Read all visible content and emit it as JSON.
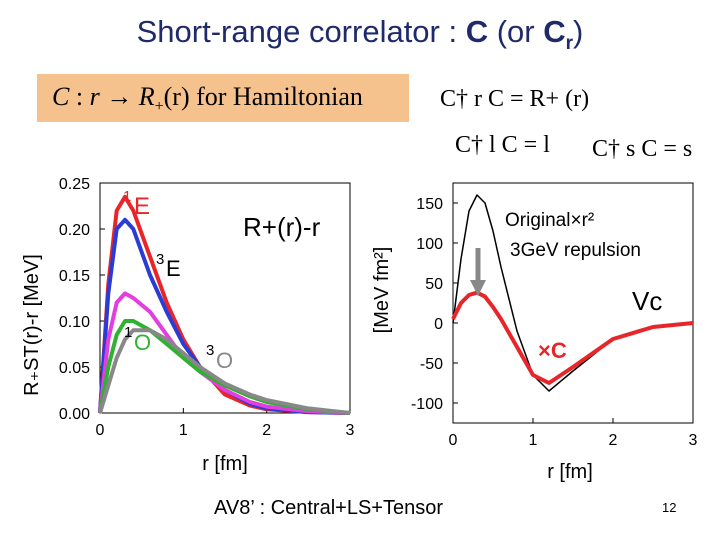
{
  "title": {
    "main": "Short-range correlator : ",
    "c": "C",
    "open": " (or ",
    "cr": "C",
    "r": "r",
    "close": ")"
  },
  "hamiltonian": {
    "lhs": "C",
    "colon": " : ",
    "r": "r",
    "arrow": "→",
    "R": "R",
    "plus": "+",
    "arg": "(r)",
    "tail": " for Hamiltonian"
  },
  "relations": {
    "rel1": "C† r  C = R+ (r)",
    "rel2": "C† l C = l",
    "rel3": "C† s C = s"
  },
  "footer": "AV8’ : Central+LS+Tensor",
  "page_number": "12",
  "colors": {
    "title": "#1f2a6b",
    "box": "#f5c28e",
    "red": "#e8262a",
    "blue": "#2a3cd6",
    "green": "#2fb22f",
    "magenta": "#e23ee0",
    "gray": "#888888"
  },
  "chart_data": [
    {
      "type": "line",
      "ylabel": "R₊ST(r)-r [MeV]",
      "xlabel": "r [fm]",
      "xlim": [
        0,
        3
      ],
      "ylim": [
        0,
        0.25
      ],
      "xticks": [
        "0",
        "1",
        "2",
        "3"
      ],
      "yticks": [
        "0.00",
        "0.05",
        "0.10",
        "0.15",
        "0.20",
        "0.25"
      ],
      "annotation": "R+(r)-r",
      "series": [
        {
          "name": "1E",
          "color": "#e8262a",
          "x": [
            0,
            0.1,
            0.2,
            0.3,
            0.4,
            0.6,
            0.8,
            1.0,
            1.2,
            1.5,
            1.8,
            2.0,
            2.5,
            3.0
          ],
          "y": [
            0,
            0.14,
            0.22,
            0.235,
            0.22,
            0.17,
            0.12,
            0.08,
            0.05,
            0.02,
            0.008,
            0.004,
            0.001,
            0
          ]
        },
        {
          "name": "",
          "color": "#2a3cd6",
          "x": [
            0,
            0.1,
            0.2,
            0.3,
            0.4,
            0.6,
            0.8,
            1.0,
            1.2,
            1.5,
            1.8,
            2.0,
            2.5,
            3.0
          ],
          "y": [
            0,
            0.13,
            0.2,
            0.21,
            0.2,
            0.15,
            0.11,
            0.075,
            0.05,
            0.025,
            0.01,
            0.005,
            0.001,
            0
          ]
        },
        {
          "name": "3E",
          "color": "#e23ee0",
          "x": [
            0,
            0.1,
            0.2,
            0.3,
            0.4,
            0.6,
            0.8,
            1.0,
            1.2,
            1.5,
            1.8,
            2.0,
            2.5,
            3.0
          ],
          "y": [
            0,
            0.08,
            0.12,
            0.13,
            0.125,
            0.11,
            0.085,
            0.06,
            0.045,
            0.025,
            0.012,
            0.007,
            0.002,
            0
          ]
        },
        {
          "name": "1O",
          "color": "#2fb22f",
          "x": [
            0,
            0.1,
            0.2,
            0.3,
            0.4,
            0.6,
            0.8,
            1.0,
            1.2,
            1.5,
            1.8,
            2.0,
            2.5,
            3.0
          ],
          "y": [
            0,
            0.05,
            0.085,
            0.1,
            0.1,
            0.09,
            0.075,
            0.06,
            0.045,
            0.03,
            0.018,
            0.012,
            0.004,
            0
          ]
        },
        {
          "name": "3O",
          "color": "#888888",
          "x": [
            0,
            0.1,
            0.2,
            0.3,
            0.4,
            0.6,
            0.8,
            1.0,
            1.2,
            1.5,
            1.8,
            2.0,
            2.5,
            3.0
          ],
          "y": [
            0,
            0.03,
            0.06,
            0.08,
            0.09,
            0.09,
            0.08,
            0.065,
            0.05,
            0.032,
            0.02,
            0.014,
            0.005,
            0
          ]
        }
      ],
      "labels": {
        "e1": "E",
        "e1sup": "1",
        "e3": "E",
        "e3sup": "3",
        "o1": "O",
        "o1sup": "1",
        "o3": "O",
        "o3sup": "3"
      }
    },
    {
      "type": "line",
      "ylabel": "[MeV fm²]",
      "xlabel": "r [fm]",
      "xlim": [
        0,
        3
      ],
      "ylim": [
        -125,
        175
      ],
      "xticks": [
        "0",
        "1",
        "2",
        "3"
      ],
      "yticks": [
        "150",
        "100",
        "50",
        "0",
        "-50",
        "-100"
      ],
      "annotation_original": "Original×r²",
      "annotation_rep": "3GeV repulsion",
      "annotation_vc": "Vc",
      "annotation_xc": "×C",
      "series": [
        {
          "name": "Original×r²",
          "color": "#000000",
          "x": [
            0,
            0.1,
            0.2,
            0.3,
            0.4,
            0.5,
            0.6,
            0.8,
            1.0,
            1.2,
            1.5,
            2.0,
            2.5,
            3.0
          ],
          "y": [
            0,
            80,
            140,
            160,
            150,
            115,
            70,
            -10,
            -65,
            -85,
            -60,
            -20,
            -5,
            0
          ]
        },
        {
          "name": "×C",
          "color": "#e8262a",
          "x": [
            0,
            0.1,
            0.2,
            0.3,
            0.4,
            0.5,
            0.6,
            0.8,
            1.0,
            1.2,
            1.5,
            2.0,
            2.5,
            3.0
          ],
          "y": [
            5,
            25,
            35,
            38,
            33,
            20,
            5,
            -30,
            -65,
            -75,
            -55,
            -20,
            -5,
            0
          ]
        }
      ]
    }
  ]
}
